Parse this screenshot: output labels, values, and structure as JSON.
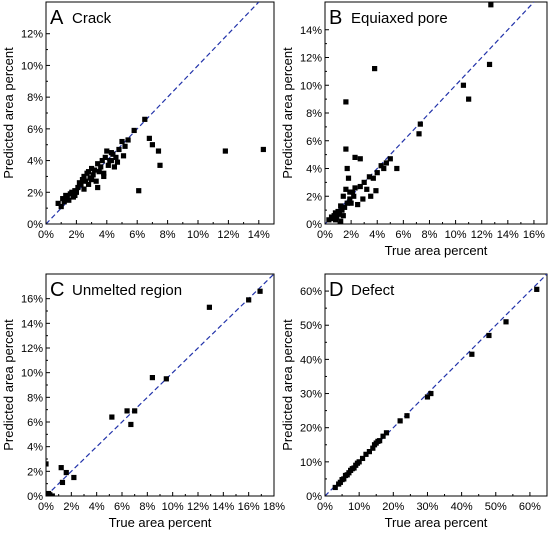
{
  "chart_data": [
    {
      "type": "scatter",
      "letter": "A",
      "title": "Crack",
      "xlabel": "",
      "ylabel": "Predicted area percent",
      "xlim": [
        0,
        15
      ],
      "ylim": [
        0,
        14
      ],
      "xticks": [
        "0%",
        "2%",
        "4%",
        "6%",
        "8%",
        "10%",
        "12%",
        "14%"
      ],
      "yticks": [
        "0%",
        "2%",
        "4%",
        "6%",
        "8%",
        "10%",
        "12%"
      ],
      "xtick_values": [
        0,
        2,
        4,
        6,
        8,
        10,
        12,
        14
      ],
      "ytick_values": [
        0,
        2,
        4,
        6,
        8,
        10,
        12
      ],
      "reference_line": "y = x",
      "x": [
        0.8,
        1.0,
        1.1,
        1.2,
        1.3,
        1.4,
        1.5,
        1.6,
        1.7,
        1.8,
        1.9,
        2.0,
        2.1,
        2.2,
        2.3,
        2.4,
        2.5,
        2.6,
        2.7,
        2.8,
        2.9,
        3.0,
        3.1,
        3.2,
        3.3,
        3.4,
        3.5,
        3.6,
        3.7,
        3.8,
        3.9,
        4.0,
        4.1,
        4.2,
        4.3,
        4.4,
        4.5,
        4.6,
        4.7,
        4.8,
        5.0,
        5.1,
        5.2,
        5.4,
        5.8,
        6.1,
        6.5,
        6.8,
        7.0,
        7.4,
        7.5,
        11.8,
        14.3,
        3.4,
        2.8,
        1.9,
        3.0,
        3.8,
        4.3,
        2.5
      ],
      "y": [
        1.3,
        1.1,
        1.6,
        1.4,
        1.8,
        1.6,
        1.5,
        1.9,
        2.0,
        1.7,
        2.1,
        2.0,
        2.3,
        2.6,
        2.5,
        2.8,
        3.0,
        2.7,
        3.2,
        3.3,
        2.9,
        3.5,
        3.1,
        3.4,
        2.7,
        3.8,
        3.3,
        3.6,
        4.0,
        3.0,
        4.2,
        4.6,
        3.7,
        4.0,
        4.5,
        4.4,
        3.6,
        4.2,
        3.9,
        4.7,
        5.2,
        4.3,
        4.9,
        5.3,
        5.9,
        2.1,
        6.6,
        5.4,
        5.0,
        4.6,
        3.7,
        4.6,
        4.7,
        2.3,
        2.5,
        1.8,
        2.8,
        3.2,
        4.0,
        2.2
      ]
    },
    {
      "type": "scatter",
      "letter": "B",
      "title": "Equiaxed pore",
      "xlabel": "True area percent",
      "ylabel": "Predicted area percent",
      "xlim": [
        0,
        17
      ],
      "ylim": [
        0,
        16
      ],
      "xticks": [
        "0%",
        "2%",
        "4%",
        "6%",
        "8%",
        "10%",
        "12%",
        "14%",
        "16%"
      ],
      "yticks": [
        "0%",
        "2%",
        "4%",
        "6%",
        "8%",
        "10%",
        "12%",
        "14%"
      ],
      "xtick_values": [
        0,
        2,
        4,
        6,
        8,
        10,
        12,
        14,
        16
      ],
      "ytick_values": [
        0,
        2,
        4,
        6,
        8,
        10,
        12,
        14
      ],
      "reference_line": "y = x",
      "x": [
        0.3,
        0.5,
        0.6,
        0.7,
        0.8,
        0.9,
        1.0,
        1.1,
        1.2,
        1.3,
        1.4,
        1.5,
        1.6,
        1.7,
        1.8,
        1.9,
        2.0,
        2.1,
        2.2,
        2.3,
        2.5,
        2.7,
        2.9,
        3.0,
        3.2,
        3.4,
        3.5,
        3.7,
        3.9,
        4.0,
        4.3,
        4.5,
        4.7,
        5.0,
        5.5,
        7.2,
        7.3,
        10.6,
        11.0,
        12.6,
        12.7,
        1.6,
        1.6,
        3.8,
        1.7,
        2.3,
        2.7,
        1.9,
        1.4,
        0.8,
        1.2
      ],
      "y": [
        0.3,
        0.5,
        0.4,
        0.6,
        0.8,
        0.5,
        0.9,
        0.7,
        1.3,
        1.0,
        2.0,
        1.2,
        2.5,
        1.5,
        3.3,
        1.8,
        1.5,
        2.3,
        2.0,
        2.6,
        1.4,
        2.7,
        1.8,
        3.0,
        2.5,
        3.4,
        2.0,
        3.3,
        2.4,
        3.7,
        4.2,
        4.0,
        4.4,
        4.7,
        4.0,
        6.5,
        7.2,
        10.0,
        9.0,
        11.5,
        15.8,
        8.8,
        5.4,
        11.2,
        4.0,
        4.8,
        4.7,
        2.3,
        0.6,
        0.3,
        0.2
      ]
    },
    {
      "type": "scatter",
      "letter": "C",
      "title": "Unmelted region",
      "xlabel": "True area percent",
      "ylabel": "Predicted area percent",
      "xlim": [
        0,
        18
      ],
      "ylim": [
        0,
        18
      ],
      "xticks": [
        "0%",
        "2%",
        "4%",
        "6%",
        "8%",
        "10%",
        "12%",
        "14%",
        "16%",
        "18%"
      ],
      "yticks": [
        "0%",
        "2%",
        "4%",
        "6%",
        "8%",
        "10%",
        "12%",
        "14%",
        "16%"
      ],
      "xtick_values": [
        0,
        2,
        4,
        6,
        8,
        10,
        12,
        14,
        16,
        18
      ],
      "ytick_values": [
        0,
        2,
        4,
        6,
        8,
        10,
        12,
        14,
        16
      ],
      "reference_line": "y = x",
      "x": [
        0.0,
        0.2,
        0.3,
        0.5,
        1.2,
        1.3,
        1.6,
        2.2,
        5.2,
        6.4,
        6.7,
        7.0,
        8.4,
        9.5,
        12.9,
        16.0,
        16.9
      ],
      "y": [
        2.6,
        0.2,
        0.1,
        0.0,
        2.3,
        1.1,
        1.9,
        1.5,
        6.4,
        6.9,
        5.8,
        6.9,
        9.6,
        9.5,
        15.3,
        15.9,
        16.6
      ]
    },
    {
      "type": "scatter",
      "letter": "D",
      "title": "Defect",
      "xlabel": "True area percent",
      "ylabel": "Predicted area percent",
      "xlim": [
        0,
        65
      ],
      "ylim": [
        0,
        65
      ],
      "xticks": [
        "0%",
        "10%",
        "20%",
        "30%",
        "40%",
        "50%",
        "60%"
      ],
      "yticks": [
        "0%",
        "10%",
        "20%",
        "30%",
        "40%",
        "50%",
        "60%"
      ],
      "xtick_values": [
        0,
        10,
        20,
        30,
        40,
        50,
        60
      ],
      "ytick_values": [
        0,
        10,
        20,
        30,
        40,
        50,
        60
      ],
      "reference_line": "y = x",
      "x": [
        3,
        4,
        4.5,
        5,
        5.5,
        6,
        6.5,
        7,
        7.5,
        8,
        8.5,
        9,
        9.5,
        10,
        11,
        12,
        13,
        14,
        14.5,
        15,
        15.5,
        16,
        17,
        18,
        22,
        24,
        30,
        31,
        43,
        48,
        53,
        62
      ],
      "y": [
        2.5,
        3.5,
        4,
        4.8,
        5,
        6,
        6.2,
        6.8,
        7.5,
        8,
        8.2,
        9,
        9.6,
        10,
        11,
        12.2,
        13,
        14,
        15,
        15.5,
        16,
        16.2,
        17.5,
        18.5,
        22,
        23.5,
        29,
        30,
        41.5,
        47,
        51,
        60.5
      ]
    }
  ]
}
